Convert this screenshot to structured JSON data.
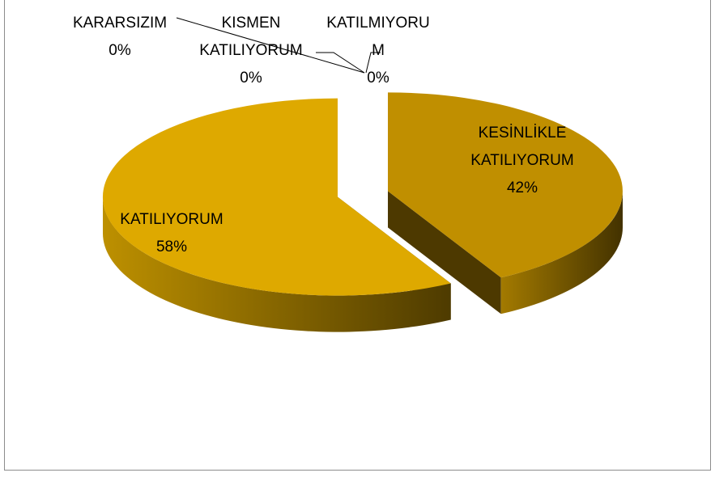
{
  "chart_data": {
    "type": "pie",
    "categories": [
      "KESİNLİKLE KATILIYORUM",
      "KATILIYORUM",
      "KARARSIZIM",
      "KISMEN KATILIYORUM",
      "KATILMIYORUM"
    ],
    "values": [
      42,
      58,
      0,
      0,
      0
    ],
    "value_labels": [
      "42%",
      "58%",
      "0%",
      "0%",
      "0%"
    ],
    "colors": [
      "#c08f00",
      "#dea900",
      "#e8b400",
      "#d9a300",
      "#c99a00"
    ]
  }
}
